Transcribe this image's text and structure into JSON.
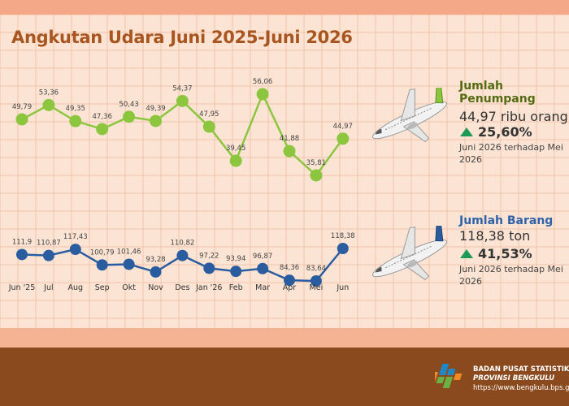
{
  "title": "Angkutan Udara Juni 2025-Juni 2026",
  "chart_data": {
    "type": "line",
    "categories": [
      "Jun '25",
      "Jul",
      "Aug",
      "Sep",
      "Okt",
      "Nov",
      "Des",
      "Jan '26",
      "Feb",
      "Mar",
      "Apr",
      "Mei",
      "Jun"
    ],
    "series": [
      {
        "name": "Jumlah Penumpang",
        "color": "#8cc63f",
        "values": [
          49.79,
          53.36,
          49.35,
          47.36,
          50.43,
          49.39,
          54.37,
          47.95,
          39.45,
          56.06,
          41.88,
          35.81,
          44.97
        ],
        "labels": [
          "49,79",
          "53,36",
          "49,35",
          "47,36",
          "50,43",
          "49,39",
          "54,37",
          "47,95",
          "39,45",
          "56,06",
          "41,88",
          "35,81",
          "44,97"
        ]
      },
      {
        "name": "Jumlah Barang",
        "color": "#2a5d9f",
        "values": [
          111.9,
          110.87,
          117.43,
          100.79,
          101.46,
          93.28,
          110.82,
          97.22,
          93.94,
          96.87,
          84.36,
          83.64,
          118.38
        ],
        "labels": [
          "111,9",
          "110,87",
          "117,43",
          "100,79",
          "101,46",
          "93,28",
          "110,82",
          "97,22",
          "93,94",
          "96,87",
          "84,36",
          "83,64",
          "118,38"
        ]
      }
    ]
  },
  "panels": {
    "passengers": {
      "title": "Jumlah Penumpang",
      "value": "44,97 ribu orang",
      "pct": "25,60%",
      "note": "Juni 2026 terhadap Mei 2026"
    },
    "cargo": {
      "title": "Jumlah Barang",
      "value": "118,38 ton",
      "pct": "41,53%",
      "note": "Juni 2026 terhadap Mei 2026"
    }
  },
  "footer": {
    "org_line1": "BADAN PUSAT STATISTIK",
    "org_line2": "PROVINSI BENGKULU",
    "url": "https://www.bengkulu.bps.go.id"
  }
}
